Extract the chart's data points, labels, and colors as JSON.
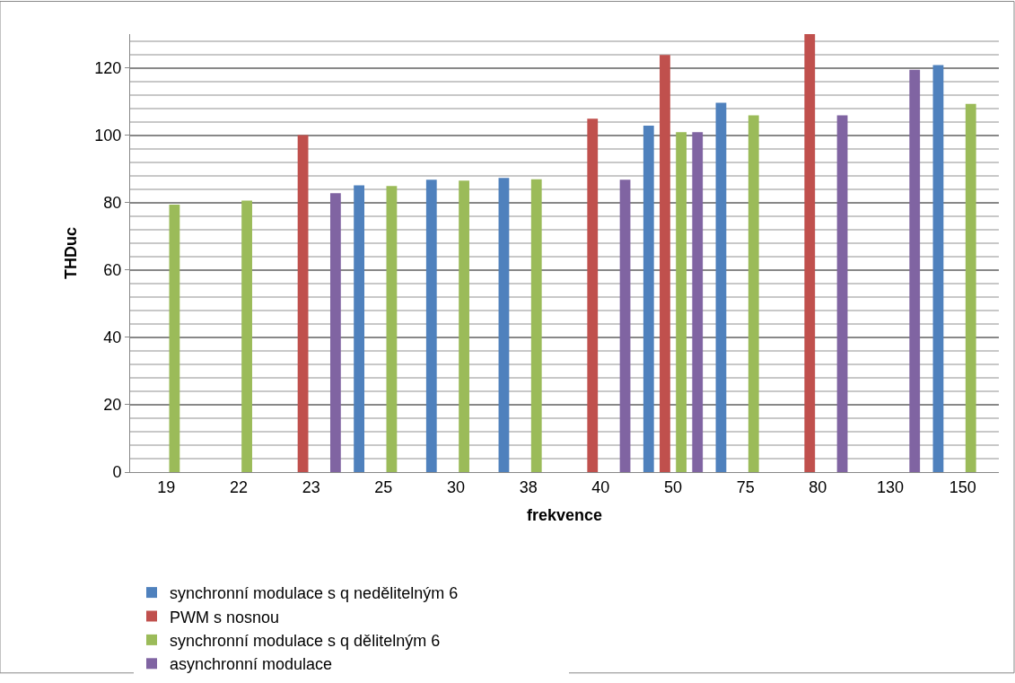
{
  "chart_data": {
    "type": "bar",
    "xlabel": "frekvence",
    "ylabel": "THDuc",
    "categories": [
      "19",
      "22",
      "23",
      "25",
      "30",
      "38",
      "40",
      "50",
      "75",
      "80",
      "130",
      "150"
    ],
    "series": [
      {
        "name": "synchronní modulace s q nedělitelným 6",
        "color": "#4f81bd",
        "values": [
          null,
          null,
          null,
          85.1,
          86.8,
          87.3,
          null,
          102.8,
          109.6,
          null,
          null,
          120.8
        ]
      },
      {
        "name": "PWM s nosnou",
        "color": "#c0504d",
        "values": [
          null,
          null,
          100,
          null,
          null,
          null,
          104.9,
          123.8,
          null,
          130,
          null,
          null
        ]
      },
      {
        "name": "synchronní modulace s q dělitelným 6",
        "color": "#9bbb59",
        "values": [
          79.4,
          80.6,
          null,
          84.9,
          86.5,
          86.9,
          null,
          100.9,
          105.9,
          null,
          null,
          109.3
        ]
      },
      {
        "name": "asynchronní modulace",
        "color": "#8064a2",
        "values": [
          null,
          null,
          82.8,
          null,
          null,
          null,
          86.8,
          100.9,
          null,
          105.9,
          119.4,
          null
        ]
      }
    ],
    "ylim": [
      0,
      130
    ],
    "yticks": [
      0,
      20,
      40,
      60,
      80,
      100,
      120
    ],
    "grid": "y",
    "legend": "bottom"
  }
}
